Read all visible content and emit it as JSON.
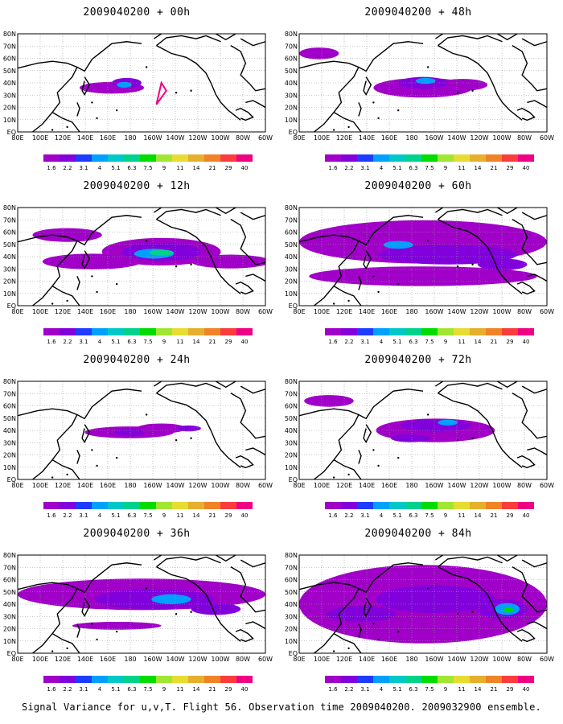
{
  "footer": "Signal Variance for u,v,T. Flight 56. Observation time 2009040200. 2009032900 ensemble.",
  "panels": [
    {
      "title": "2009040200 + 00h",
      "level": 0
    },
    {
      "title": "2009040200 + 48h",
      "level": 4
    },
    {
      "title": "2009040200 + 12h",
      "level": 1
    },
    {
      "title": "2009040200 + 60h",
      "level": 5
    },
    {
      "title": "2009040200 + 24h",
      "level": 2
    },
    {
      "title": "2009040200 + 72h",
      "level": 6
    },
    {
      "title": "2009040200 + 36h",
      "level": 3
    },
    {
      "title": "2009040200 + 84h",
      "level": 7
    }
  ],
  "lon_labels": [
    "80E",
    "100E",
    "120E",
    "140E",
    "160E",
    "180",
    "160W",
    "140W",
    "120W",
    "100W",
    "80W",
    "60W"
  ],
  "lat_labels": [
    "80N",
    "70N",
    "60N",
    "50N",
    "40N",
    "30N",
    "20N",
    "10N",
    "EQ"
  ],
  "colorbar": {
    "labels": [
      "1.6",
      "2.2",
      "3.1",
      "4",
      "5.1",
      "6.3",
      "7.5",
      "9",
      "11",
      "14",
      "21",
      "29",
      "40"
    ],
    "colors": [
      "#a000c8",
      "#8200dc",
      "#1e3cff",
      "#00a0ff",
      "#00c8c8",
      "#00d28c",
      "#00dc00",
      "#a0e632",
      "#e6dc32",
      "#e6af2d",
      "#f08228",
      "#fa3c3c",
      "#f00082"
    ]
  },
  "legend_colors": {
    "ocean_background": "#ffffff",
    "coast": "#000000",
    "grid": "#9a9a9a"
  }
}
